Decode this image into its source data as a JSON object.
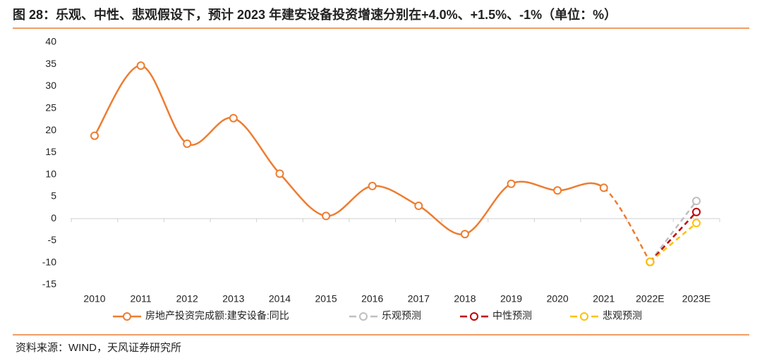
{
  "chart_data": {
    "type": "line",
    "title": "图 28：乐观、中性、悲观假设下，预计 2023 年建安设备投资增速分别在+4.0%、+1.5%、-1%（单位：%）",
    "source": "资料来源：WIND，天风证券研究所",
    "categories": [
      "2010",
      "2011",
      "2012",
      "2013",
      "2014",
      "2015",
      "2016",
      "2017",
      "2018",
      "2019",
      "2020",
      "2021",
      "2022E",
      "2023E"
    ],
    "series": [
      {
        "name": "房地产投资完成额:建安设备:同比",
        "color": "#ED7D31",
        "values": [
          18.8,
          34.7,
          17.0,
          22.8,
          10.2,
          0.6,
          7.4,
          2.9,
          -3.5,
          7.9,
          6.4,
          7.0,
          -9.8,
          null
        ]
      },
      {
        "name": "乐观预测",
        "color": "#BFBFBF",
        "line_style": "dashed",
        "values": [
          null,
          null,
          null,
          null,
          null,
          null,
          null,
          null,
          null,
          null,
          null,
          null,
          -9.8,
          4.0
        ]
      },
      {
        "name": "中性预测",
        "color": "#C00000",
        "line_style": "dashed",
        "values": [
          null,
          null,
          null,
          null,
          null,
          null,
          null,
          null,
          null,
          null,
          null,
          null,
          -9.8,
          1.5
        ]
      },
      {
        "name": "悲观预测",
        "color": "#FFC000",
        "line_style": "dashed",
        "values": [
          null,
          null,
          null,
          null,
          null,
          null,
          null,
          null,
          null,
          null,
          null,
          null,
          -9.8,
          -1.0
        ]
      }
    ],
    "ylim": [
      -15,
      40
    ],
    "yticks": [
      -15,
      -10,
      -5,
      0,
      5,
      10,
      15,
      20,
      25,
      30,
      35,
      40
    ],
    "smooth": true
  }
}
